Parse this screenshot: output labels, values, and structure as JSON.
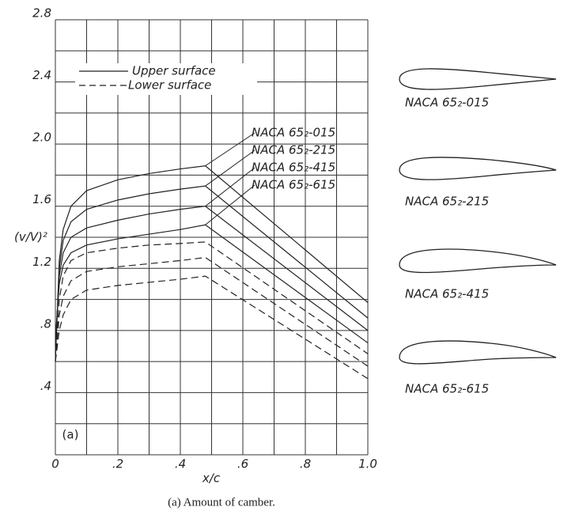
{
  "chart_data": {
    "type": "line",
    "ylabel": "(v/V)²",
    "xlabel": "x/c",
    "panel": "(a)",
    "caption": "(a) Amount of camber.",
    "legend": [
      "Upper surface",
      "Lower surface"
    ],
    "x": [
      0,
      0.0125,
      0.025,
      0.05,
      0.1,
      0.2,
      0.3,
      0.4,
      0.48,
      1.0
    ],
    "series": [
      {
        "name": "NACA 65₂-015",
        "upper": [
          0.6,
          1.25,
          1.45,
          1.6,
          1.7,
          1.77,
          1.81,
          1.84,
          1.86,
          0.98
        ]
      },
      {
        "name": "NACA 65₂-215",
        "upper": [
          0.65,
          1.2,
          1.38,
          1.5,
          1.58,
          1.64,
          1.68,
          1.71,
          1.73,
          0.88
        ],
        "lower": [
          0.6,
          1.0,
          1.15,
          1.25,
          1.3,
          1.33,
          1.35,
          1.36,
          1.37,
          0.65
        ]
      },
      {
        "name": "NACA 65₂-415",
        "upper": [
          0.7,
          1.15,
          1.3,
          1.4,
          1.46,
          1.51,
          1.55,
          1.58,
          1.6,
          0.8
        ],
        "lower": [
          0.6,
          0.9,
          1.02,
          1.12,
          1.18,
          1.21,
          1.23,
          1.25,
          1.27,
          0.57
        ]
      },
      {
        "name": "NACA 65₂-615",
        "upper": [
          0.75,
          1.1,
          1.22,
          1.3,
          1.35,
          1.39,
          1.42,
          1.45,
          1.48,
          0.72
        ],
        "lower": [
          0.6,
          0.8,
          0.9,
          1.0,
          1.06,
          1.09,
          1.11,
          1.13,
          1.15,
          0.49
        ]
      }
    ],
    "xlim": [
      0,
      1.0
    ],
    "ylim": [
      0,
      2.8
    ],
    "xticks": [
      0,
      {
        "value": 0.2,
        "label": ".2"
      },
      {
        "value": 0.4,
        "label": ".4"
      },
      {
        "value": 0.6,
        "label": ".6"
      },
      {
        "value": 0.8,
        "label": ".8"
      },
      {
        "value": 1.0,
        "label": "1.0"
      }
    ],
    "yticks": [
      {
        "value": 0.4,
        "label": ".4"
      },
      {
        "value": 0.8,
        "label": ".8"
      },
      {
        "value": 1.2,
        "label": "1.2"
      },
      {
        "value": 1.6,
        "label": "1.6"
      },
      {
        "value": 2.0,
        "label": "2.0"
      },
      {
        "value": 2.4,
        "label": "2.4"
      },
      {
        "value": 2.8,
        "label": "2.8"
      }
    ],
    "xgrid": [
      0,
      0.1,
      0.2,
      0.3,
      0.4,
      0.5,
      0.6,
      0.7,
      0.8,
      0.9,
      1.0
    ],
    "ygrid": [
      0,
      0.2,
      0.4,
      0.6,
      0.8,
      1.0,
      1.2,
      1.4,
      1.6,
      1.8,
      2.0,
      2.2,
      2.4,
      2.6,
      2.8
    ]
  }
}
